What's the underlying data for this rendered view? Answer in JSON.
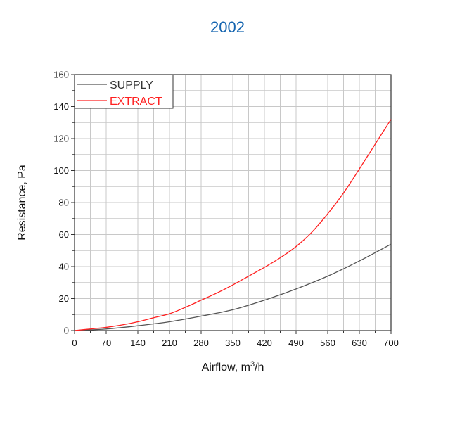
{
  "title": "2002",
  "chart_data": {
    "type": "line",
    "xlabel": "Airflow, m³/h",
    "xlabel_main": "Airflow, m",
    "xlabel_sup": "3",
    "xlabel_tail": "/h",
    "ylabel": "Resistance, Pa",
    "xlim": [
      0,
      700
    ],
    "ylim": [
      0,
      160
    ],
    "xticks": [
      0,
      70,
      140,
      210,
      280,
      350,
      420,
      490,
      560,
      630,
      700
    ],
    "yticks": [
      0,
      20,
      40,
      60,
      80,
      100,
      120,
      140,
      160
    ],
    "grid": true,
    "legend_position": "top-left",
    "series": [
      {
        "name": "SUPPLY",
        "color": "#555555",
        "x": [
          0,
          70,
          140,
          210,
          280,
          350,
          420,
          490,
          560,
          630,
          700
        ],
        "y": [
          0,
          1,
          3,
          5.5,
          9,
          13,
          19,
          26,
          34,
          43.5,
          54
        ]
      },
      {
        "name": "EXTRACT",
        "color": "#ff2020",
        "x": [
          0,
          35,
          70,
          105,
          140,
          175,
          210,
          245,
          280,
          315,
          350,
          385,
          420,
          455,
          490,
          525,
          560,
          595,
          630,
          665,
          700
        ],
        "y": [
          0,
          1,
          2,
          3.5,
          5.5,
          8,
          10.5,
          14.5,
          19,
          23.5,
          28.5,
          34,
          39.5,
          45.5,
          52.5,
          61.5,
          73,
          86,
          101,
          116.5,
          132
        ]
      }
    ]
  }
}
